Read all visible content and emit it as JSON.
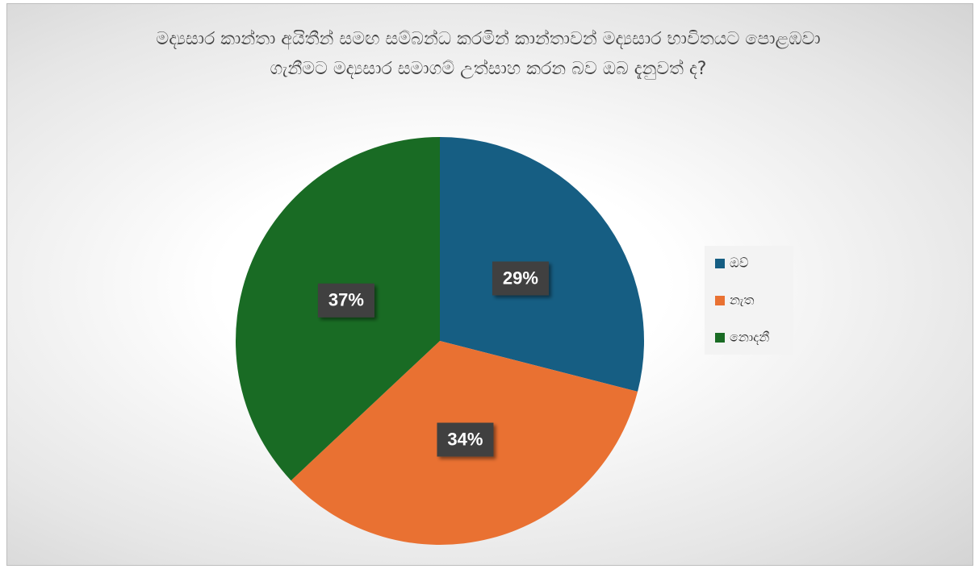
{
  "chart_data": {
    "type": "pie",
    "title": "මද්‍යසාර කාන්තා අයිතීන් සමඟ සම්බන්ධ කරමින් කාන්තාවන් මද්‍යසාර භාවිතයට පොළඹවා ගැනීමට මද්‍යසාර සමාගම් උත්සාහ කරන බව ඔබ දැනුවත් ද?",
    "categories": [
      "ඔව්",
      "නැත",
      "නොදනී"
    ],
    "values": [
      29,
      34,
      37
    ],
    "value_labels": [
      "29%",
      "34%",
      "37%"
    ],
    "colors": [
      "#165e83",
      "#e97132",
      "#196b24"
    ],
    "legend": "right"
  }
}
